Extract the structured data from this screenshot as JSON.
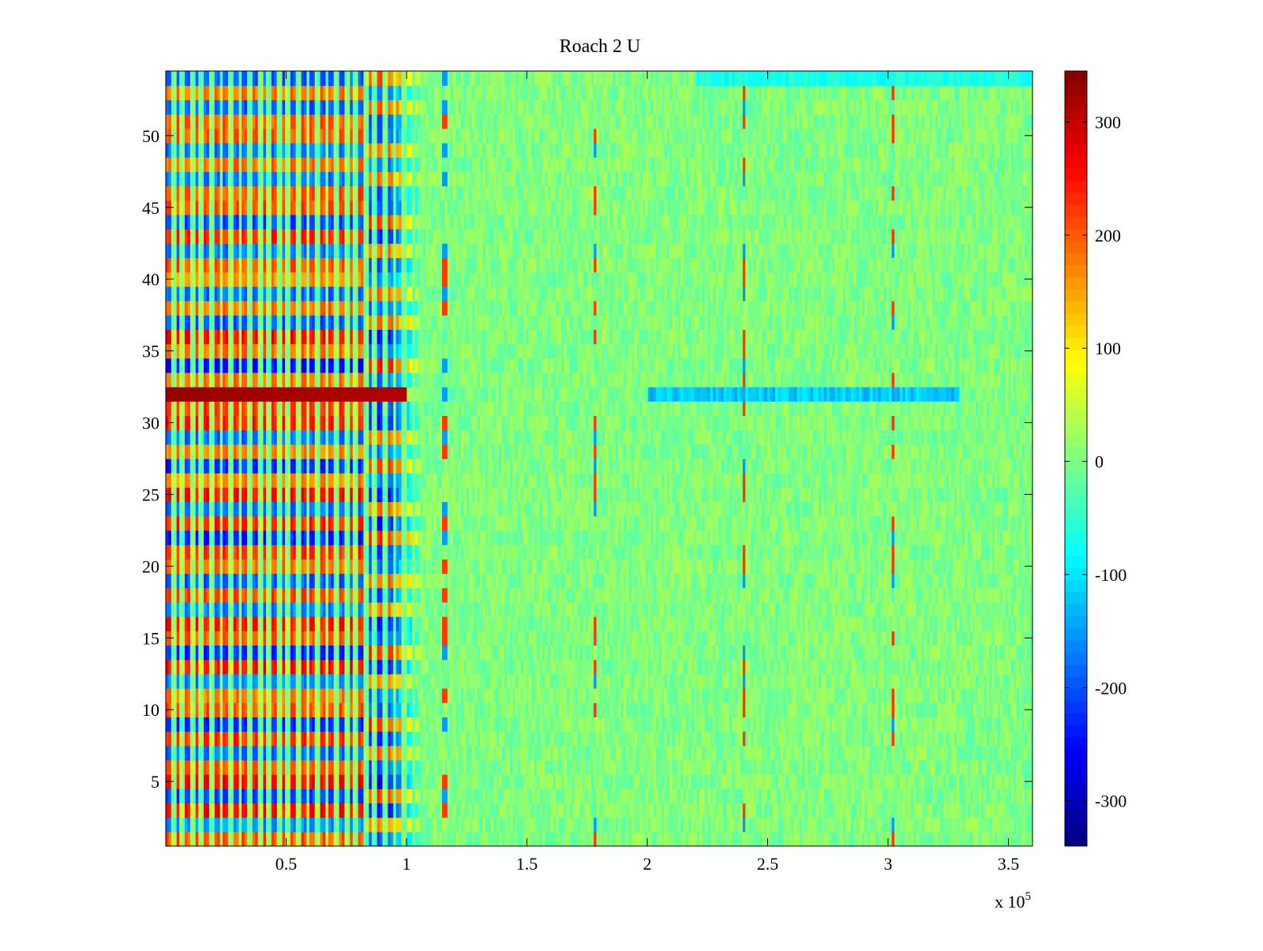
{
  "chart_data": {
    "type": "heatmap",
    "title": "Roach 2 U",
    "xlabel": "",
    "ylabel": "",
    "x_range": [
      0,
      360000
    ],
    "y_range": [
      0.5,
      54.5
    ],
    "x_ticks": [
      50000,
      100000,
      150000,
      200000,
      250000,
      300000,
      350000
    ],
    "x_tick_labels": [
      "0.5",
      "1",
      "1.5",
      "2",
      "2.5",
      "3",
      "3.5"
    ],
    "x_multiplier_label": "x 10",
    "x_multiplier_exponent": "5",
    "y_ticks": [
      5,
      10,
      15,
      20,
      25,
      30,
      35,
      40,
      45,
      50
    ],
    "y_tick_labels": [
      "5",
      "10",
      "15",
      "20",
      "25",
      "30",
      "35",
      "40",
      "45",
      "50"
    ],
    "rows": 54,
    "colormap": "jet",
    "color_range": [
      -340,
      345
    ],
    "colorbar_ticks": [
      300,
      200,
      100,
      0,
      -100,
      -200,
      -300
    ],
    "colorbar_tick_labels": [
      "300",
      "200",
      "100",
      "0",
      "-100",
      "-200",
      "-300"
    ],
    "colorbar_position": "right",
    "grid": false,
    "colors": {
      "low": "#00008f",
      "mid": "#80ff80",
      "high": "#800000",
      "axis": "#000000"
    },
    "features": {
      "early_oscillation_end_x": 107000,
      "noise_level_background": 30,
      "highlight_row": 32,
      "highlight_row_early_value": 330,
      "highlight_row_late_value": -120,
      "highlight_row_late_range": [
        200000,
        330000
      ],
      "top_row_late_value": -70,
      "spike_columns_x": [
        116000,
        178000,
        240000,
        302000
      ]
    }
  }
}
